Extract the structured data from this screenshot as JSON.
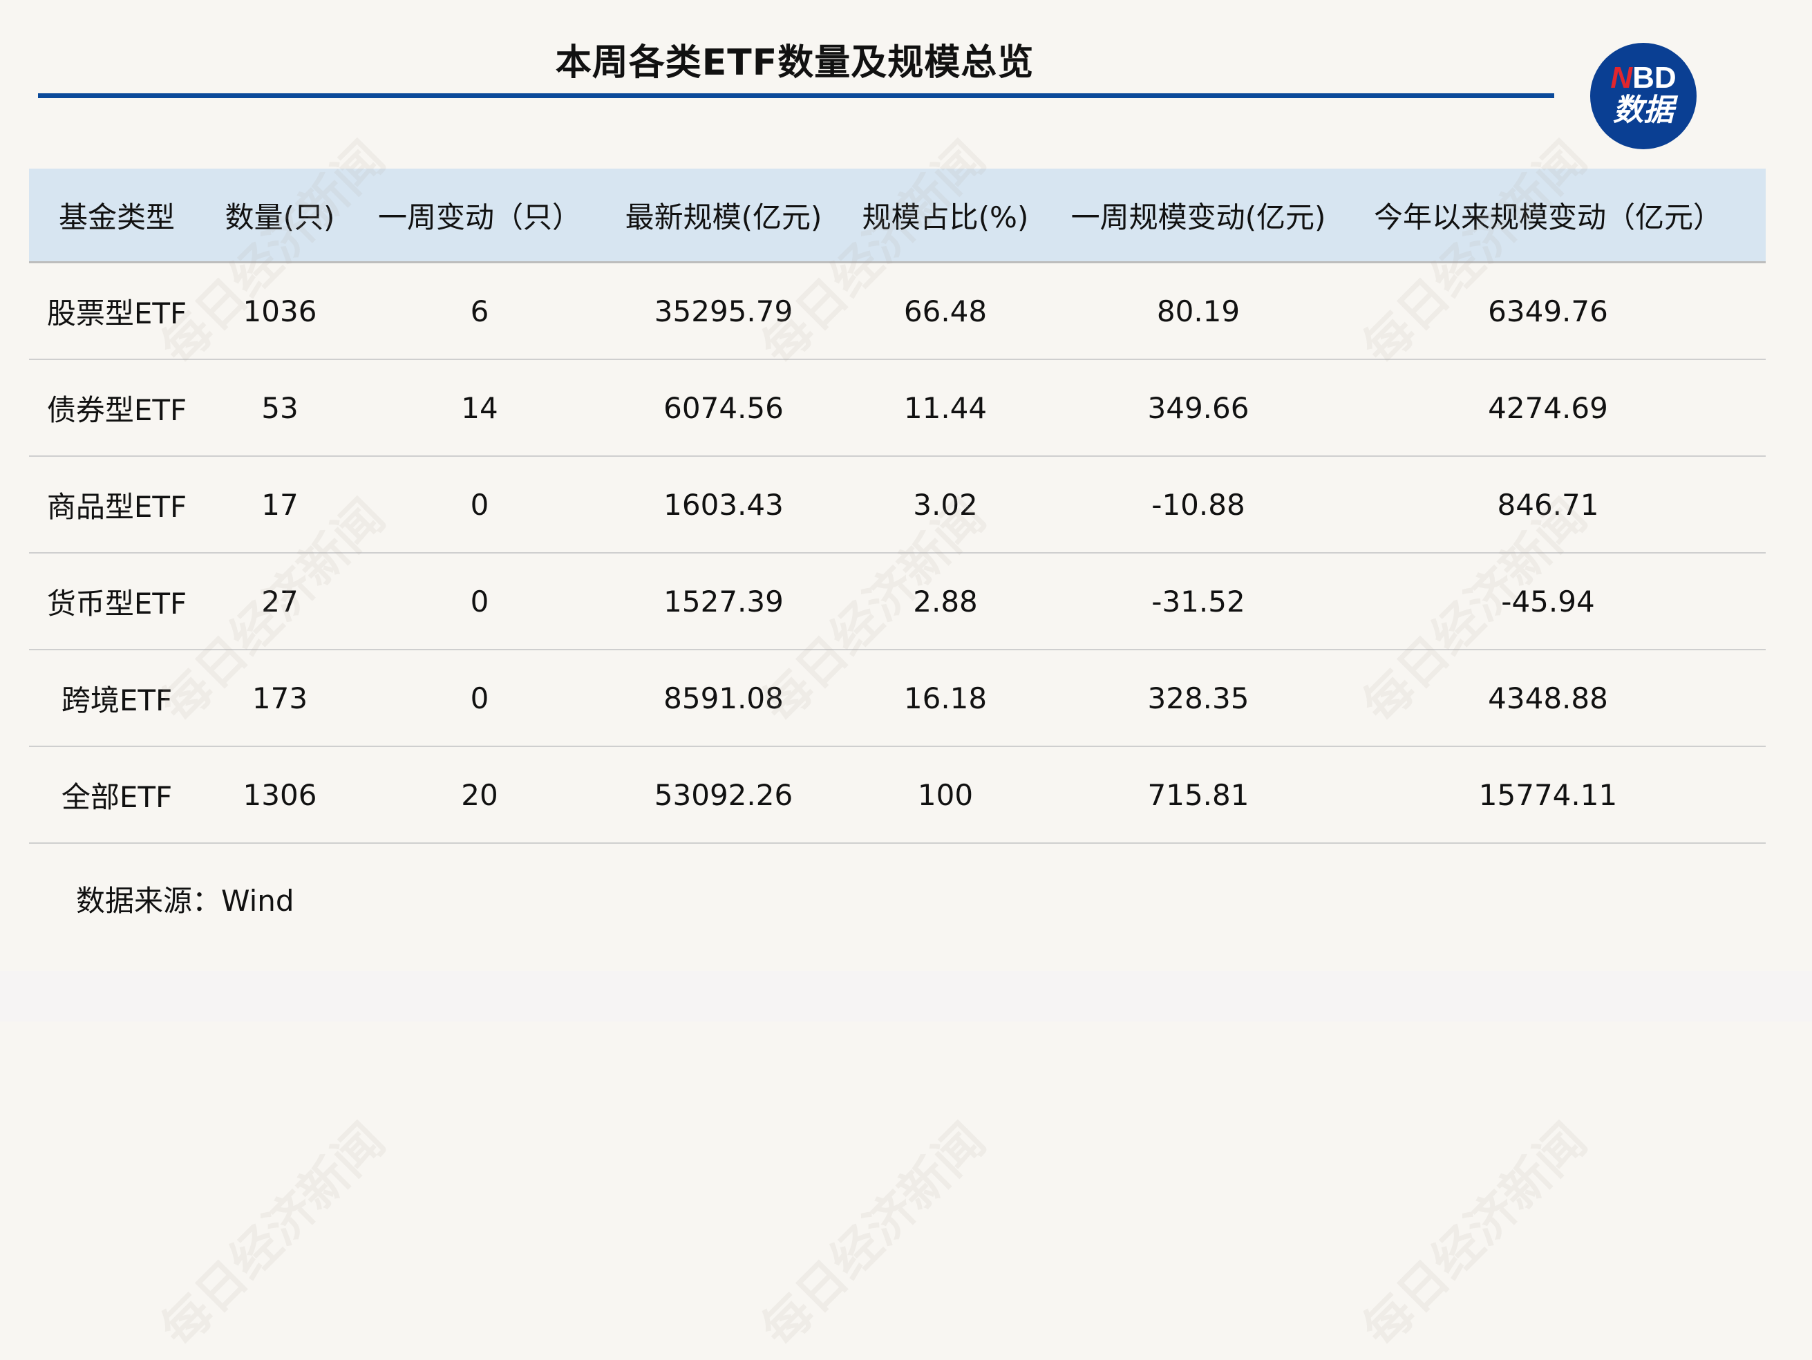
{
  "title": "本周各类ETF数量及规模总览",
  "logo": {
    "brand_red": "N",
    "brand_rest": "BD",
    "subtitle": "数据"
  },
  "colors": {
    "accent": "#0b4a9a",
    "header_bg": "#d7e5f1",
    "background": "#f8f6f2",
    "logo_red": "#e2262d"
  },
  "watermark": "每日经济新闻",
  "table": {
    "headers": [
      "基金类型",
      "数量(只)",
      "一周变动（只）",
      "最新规模(亿元)",
      "规模占比(%)",
      "一周规模变动(亿元)",
      "今年以来规模变动（亿元）"
    ],
    "rows": [
      [
        "股票型ETF",
        "1036",
        "6",
        "35295.79",
        "66.48",
        "80.19",
        "6349.76"
      ],
      [
        "债券型ETF",
        "53",
        "14",
        "6074.56",
        "11.44",
        "349.66",
        "4274.69"
      ],
      [
        "商品型ETF",
        "17",
        "0",
        "1603.43",
        "3.02",
        "-10.88",
        "846.71"
      ],
      [
        "货币型ETF",
        "27",
        "0",
        "1527.39",
        "2.88",
        "-31.52",
        "-45.94"
      ],
      [
        "跨境ETF",
        "173",
        "0",
        "8591.08",
        "16.18",
        "328.35",
        "4348.88"
      ],
      [
        "全部ETF",
        "1306",
        "20",
        "53092.26",
        "100",
        "715.81",
        "15774.11"
      ]
    ]
  },
  "source": "数据来源：Wind"
}
